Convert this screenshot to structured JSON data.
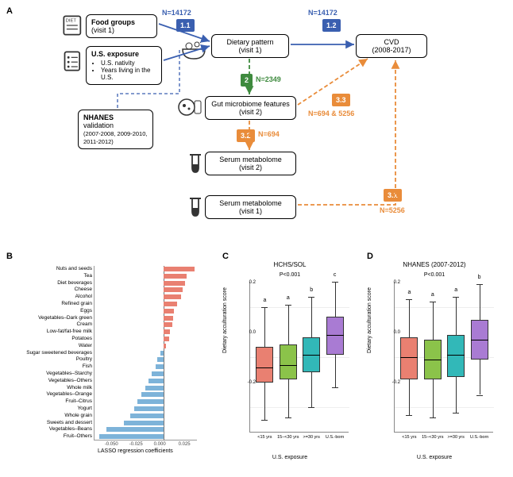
{
  "panelA": {
    "label": "A",
    "nodes": {
      "food": {
        "title": "Food groups",
        "sub": "(visit 1)"
      },
      "usexp": {
        "title": "U.S. exposure",
        "bullets": [
          "U.S. nativity",
          "Years living in the U.S."
        ]
      },
      "nhanes": {
        "title": "NHANES",
        "sub": "validation",
        "years": "(2007-2008, 2009-2010, 2011-2012)"
      },
      "diet": {
        "title": "Dietary pattern",
        "sub": "(visit 1)"
      },
      "gut": {
        "title": "Gut microbiome features (visit 2)"
      },
      "serum2": {
        "title": "Serum metabolome",
        "sub": "(visit 2)"
      },
      "serum1": {
        "title": "Serum metabolome",
        "sub": "(visit 1)"
      },
      "cvd": {
        "title": "CVD",
        "sub": "(2008-2017)"
      }
    },
    "steps": {
      "1_1": {
        "text": "1.1",
        "color": "#3a5fb0"
      },
      "1_2": {
        "text": "1.2",
        "color": "#3a5fb0"
      },
      "2": {
        "text": "2",
        "color": "#3e8a3e"
      },
      "3_1": {
        "text": "3.1",
        "color": "#e98c3a"
      },
      "3_2": {
        "text": "3.2",
        "color": "#e98c3a"
      },
      "3_3": {
        "text": "3.3",
        "color": "#e98c3a"
      }
    },
    "nlabels": {
      "n1": {
        "text": "N=14172",
        "color": "#3a5fb0"
      },
      "n2": {
        "text": "N=14172",
        "color": "#3a5fb0"
      },
      "n3": {
        "text": "N=2349",
        "color": "#3e8a3e"
      },
      "n4": {
        "text": "N=694 & 5256",
        "color": "#e98c3a"
      },
      "n5": {
        "text": "N=694",
        "color": "#e98c3a"
      },
      "n6": {
        "text": "N=5256",
        "color": "#e98c3a"
      }
    },
    "colors": {
      "blue": "#3a5fb0",
      "green": "#3e8a3e",
      "orange": "#e98c3a"
    }
  },
  "panelB": {
    "label": "B",
    "xlabel": "LASSO regression coefficients",
    "pos_color": "#e98071",
    "neg_color": "#7db3d9",
    "xlim": [
      -0.07,
      0.035
    ],
    "ticks": [
      -0.05,
      -0.025,
      0.0,
      0.025
    ],
    "items": [
      {
        "label": "Nuts and seeds",
        "v": 0.032
      },
      {
        "label": "Tea",
        "v": 0.024
      },
      {
        "label": "Diet beverages",
        "v": 0.022
      },
      {
        "label": "Cheese",
        "v": 0.02
      },
      {
        "label": "Alcohol",
        "v": 0.018
      },
      {
        "label": "Refined grain",
        "v": 0.014
      },
      {
        "label": "Eggs",
        "v": 0.011
      },
      {
        "label": "Vegetables–Dark green",
        "v": 0.01
      },
      {
        "label": "Cream",
        "v": 0.009
      },
      {
        "label": "Low-fat/fat-free milk",
        "v": 0.007
      },
      {
        "label": "Potatoes",
        "v": 0.006
      },
      {
        "label": "Water",
        "v": 0.003
      },
      {
        "label": "Sugar sweetened beverages",
        "v": -0.003
      },
      {
        "label": "Poultry",
        "v": -0.006
      },
      {
        "label": "Fish",
        "v": -0.008
      },
      {
        "label": "Vegetables–Starchy",
        "v": -0.012
      },
      {
        "label": "Vegetables–Others",
        "v": -0.015
      },
      {
        "label": "Whole milk",
        "v": -0.018
      },
      {
        "label": "Vegetables–Orange",
        "v": -0.022
      },
      {
        "label": "Fruit–Citrus",
        "v": -0.026
      },
      {
        "label": "Yogurt",
        "v": -0.03
      },
      {
        "label": "Whole grain",
        "v": -0.034
      },
      {
        "label": "Sweets and dessert",
        "v": -0.04
      },
      {
        "label": "Vegetables–Beans",
        "v": -0.058
      },
      {
        "label": "Fruit–Others",
        "v": -0.065
      }
    ]
  },
  "panelC": {
    "label": "C",
    "title": "HCHS/SOL",
    "pval": "P<0.001",
    "ylabel": "Dietary acculturation score",
    "xlabel": "U.S. exposure",
    "ylim": [
      -0.3,
      0.3
    ],
    "yticks": [
      -0.2,
      0.0,
      0.2
    ],
    "groups": [
      {
        "label": "<15 yrs",
        "letter": "a",
        "color": "#e98071",
        "q1": -0.1,
        "med": -0.04,
        "q3": 0.04,
        "lo": -0.25,
        "hi": 0.2
      },
      {
        "label": "15–<30 yrs",
        "letter": "a",
        "color": "#8bc34a",
        "q1": -0.09,
        "med": -0.03,
        "q3": 0.05,
        "lo": -0.24,
        "hi": 0.21
      },
      {
        "label": ">=30 yrs",
        "letter": "b",
        "color": "#32b8b8",
        "q1": -0.06,
        "med": 0.01,
        "q3": 0.08,
        "lo": -0.2,
        "hi": 0.24
      },
      {
        "label": "U.S.-born",
        "letter": "c",
        "color": "#a97bd3",
        "q1": 0.01,
        "med": 0.09,
        "q3": 0.16,
        "lo": -0.12,
        "hi": 0.3
      }
    ]
  },
  "panelD": {
    "label": "D",
    "title": "NHANES (2007-2012)",
    "pval": "P<0.001",
    "ylabel": "Dietary acculturation score",
    "xlabel": "U.S. exposure",
    "ylim": [
      -0.3,
      0.3
    ],
    "yticks": [
      -0.2,
      0.0,
      0.2
    ],
    "groups": [
      {
        "label": "<15 yrs",
        "letter": "a",
        "color": "#e98071",
        "q1": -0.09,
        "med": 0.0,
        "q3": 0.08,
        "lo": -0.23,
        "hi": 0.23
      },
      {
        "label": "15–<30 yrs",
        "letter": "a",
        "color": "#8bc34a",
        "q1": -0.09,
        "med": -0.01,
        "q3": 0.07,
        "lo": -0.24,
        "hi": 0.22
      },
      {
        "label": ">=30 yrs",
        "letter": "a",
        "color": "#32b8b8",
        "q1": -0.08,
        "med": 0.01,
        "q3": 0.09,
        "lo": -0.22,
        "hi": 0.24
      },
      {
        "label": "U.S.-born",
        "letter": "b",
        "color": "#a97bd3",
        "q1": -0.01,
        "med": 0.07,
        "q3": 0.15,
        "lo": -0.15,
        "hi": 0.29
      }
    ]
  }
}
